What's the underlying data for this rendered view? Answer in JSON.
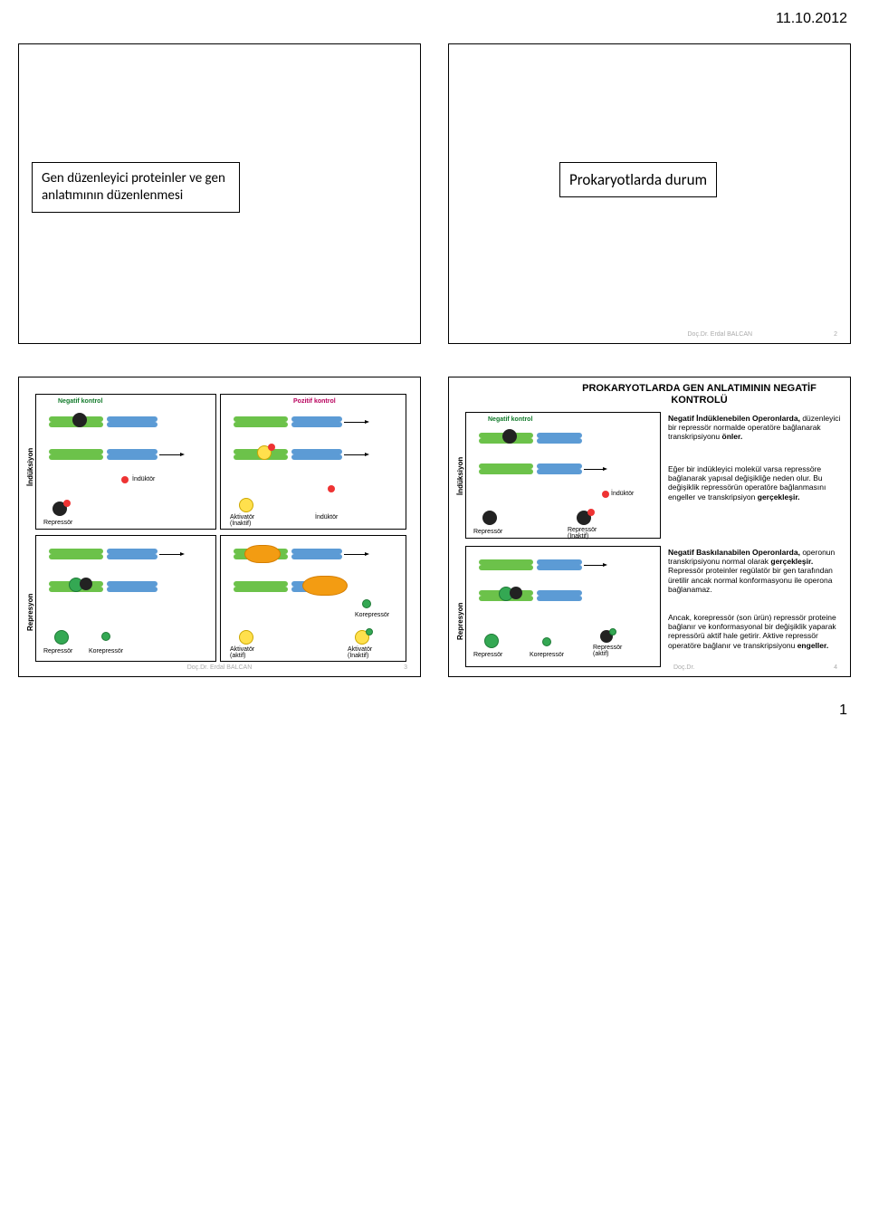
{
  "header": {
    "date": "11.10.2012"
  },
  "footer": {
    "pageNumber": "1",
    "author": "Doç.Dr. Erdal BALCAN"
  },
  "slide1": {
    "title": "Gen düzenleyici proteinler ve gen anlatımının düzenlenmesi"
  },
  "slide2": {
    "title": "Prokaryotlarda durum",
    "footerRight": "2"
  },
  "slide3": {
    "footerRight": "3",
    "labels": {
      "induksiyon": "İndüksiyon",
      "represyon": "Represyon",
      "negKontrol": "Negatif kontrol",
      "pozKontrol": "Pozitif kontrol",
      "induktor": "İndüktör",
      "repressor": "Repressör",
      "aktivator_inaktif": "Aktivatör\n(İnaktif)",
      "aktivator_aktif": "Aktivatör\n(aktif)",
      "aktivator_inaktif2": "Aktivatör\n(İnaktif)",
      "korepressor": "Korepressör"
    },
    "colors": {
      "dnaTop": "#6cc24a",
      "dnaBot": "#5c9bd5",
      "repressor": "#222222",
      "activatorInactive": "#ffe04d",
      "activatorActive": "#34a853",
      "inducer": "#e33333",
      "corepressor": "#34a853",
      "blob": "#f39c12"
    }
  },
  "slide4": {
    "footerRight": "4",
    "title": "PROKARYOTLARDA GEN ANLATIMININ NEGATİF KONTROLÜ",
    "labels": {
      "induksiyon": "İndüksiyon",
      "represyon": "Represyon",
      "negKontrol": "Negatif kontrol",
      "induktor": "İndüktör",
      "repressor": "Repressör",
      "repressor_inaktif": "Repressör\n(İnaktif)",
      "repressor_aktif": "Repressör\n(aktif)",
      "korepressor": "Korepressör"
    },
    "para1": "**Negatif İndüklenebilen Operonlarda,** düzenleyici bir repressör normalde operatöre bağlanarak transkripsiyonu **önler.**",
    "para2": "Eğer bir indükleyici molekül varsa repressöre bağlanarak yapısal değişikliğe neden olur. Bu değişiklik repressörün operatöre bağlanmasını engeller ve transkripsiyon **gerçekleşir.**",
    "para3": "**Negatif Baskılanabilen Operonlarda,** operonun transkripsiyonu normal olarak **gerçekleşir.** Repressör proteinler regülatör bir gen tarafından üretilir ancak normal konformasyonu ile operona bağlanamaz.",
    "para4": "Ancak, korepressör (son ürün) repressör proteine bağlanır ve konformasyonal bir değişiklik yaparak repressörü aktif hale getirir. Aktive repressör operatöre bağlanır ve transkripsiyonu **engeller.**"
  }
}
